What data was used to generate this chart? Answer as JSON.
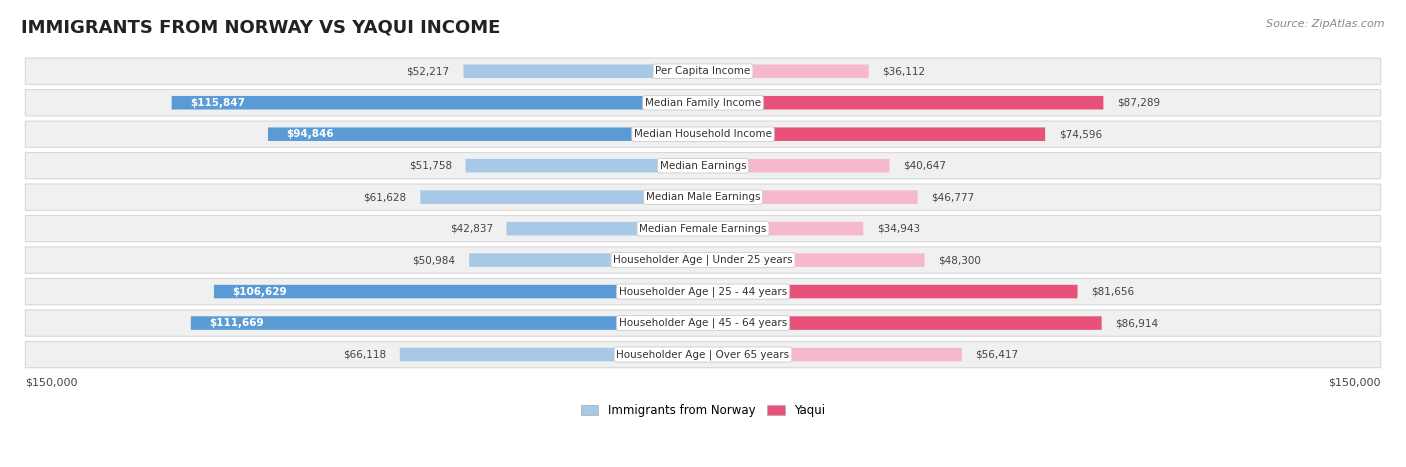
{
  "title": "IMMIGRANTS FROM NORWAY VS YAQUI INCOME",
  "source": "Source: ZipAtlas.com",
  "categories": [
    "Per Capita Income",
    "Median Family Income",
    "Median Household Income",
    "Median Earnings",
    "Median Male Earnings",
    "Median Female Earnings",
    "Householder Age | Under 25 years",
    "Householder Age | 25 - 44 years",
    "Householder Age | 45 - 64 years",
    "Householder Age | Over 65 years"
  ],
  "norway_values": [
    52217,
    115847,
    94846,
    51758,
    61628,
    42837,
    50984,
    106629,
    111669,
    66118
  ],
  "yaqui_values": [
    36112,
    87289,
    74596,
    40647,
    46777,
    34943,
    48300,
    81656,
    86914,
    56417
  ],
  "norway_labels": [
    "$52,217",
    "$115,847",
    "$94,846",
    "$51,758",
    "$61,628",
    "$42,837",
    "$50,984",
    "$106,629",
    "$111,669",
    "$66,118"
  ],
  "yaqui_labels": [
    "$36,112",
    "$87,289",
    "$74,596",
    "$40,647",
    "$46,777",
    "$34,943",
    "$48,300",
    "$81,656",
    "$86,914",
    "$56,417"
  ],
  "norway_color_low": "#a8c8e8",
  "norway_color_high": "#5b9bd5",
  "yaqui_color_low": "#f5b8cc",
  "yaqui_color_high": "#e8527a",
  "norway_high_threshold": 90000,
  "yaqui_high_threshold": 70000,
  "max_value": 150000,
  "legend_norway": "Immigrants from Norway",
  "legend_yaqui": "Yaqui",
  "bg_color": "#ffffff",
  "row_bg": "#f0f0f0",
  "row_border": "#d8d8d8",
  "xlabel_left": "$150,000",
  "xlabel_right": "$150,000",
  "title_fontsize": 13,
  "source_fontsize": 8,
  "label_fontsize": 7.5,
  "cat_fontsize": 7.5
}
